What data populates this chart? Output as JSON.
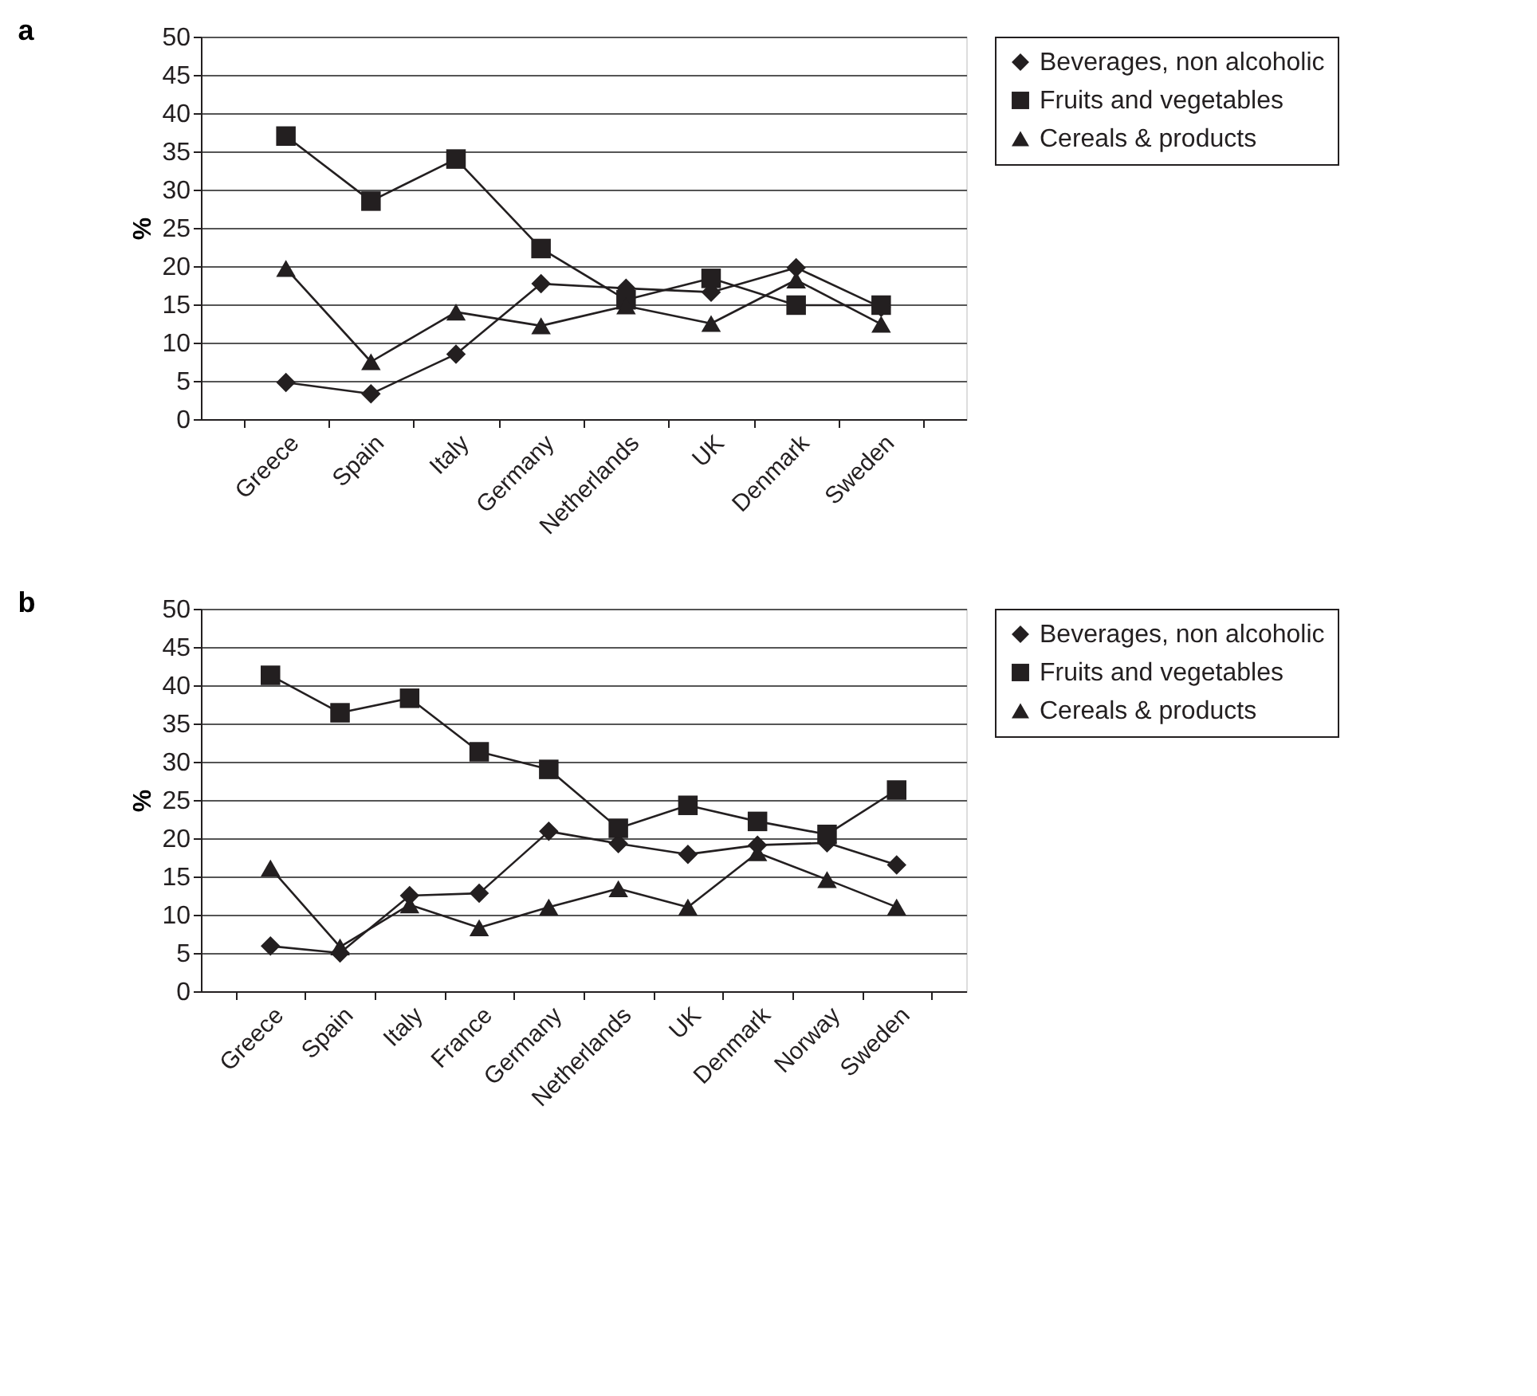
{
  "chart_data": [
    {
      "type": "line",
      "title": "a",
      "ylabel": "%",
      "categories": [
        "Greece",
        "Spain",
        "Italy",
        "Germany",
        "Netherlands",
        "UK",
        "Denmark",
        "Sweden"
      ],
      "series": [
        {
          "name": "Beverages, non alcoholic",
          "color": "#231f20",
          "marker": "diamond",
          "values": [
            4.8,
            3.3,
            8.5,
            17.7,
            17.1,
            16.6,
            19.8,
            14.6
          ]
        },
        {
          "name": "Fruits and vegetables",
          "color": "#231f20",
          "marker": "square",
          "values": [
            37,
            28.5,
            34,
            22.3,
            15.6,
            18.4,
            14.9,
            14.9
          ]
        },
        {
          "name": "Cereals & products",
          "color": "#231f20",
          "marker": "triangle",
          "values": [
            19.7,
            7.5,
            14,
            12.2,
            14.8,
            12.5,
            18.2,
            12.4
          ]
        }
      ],
      "ylim": [
        0,
        50
      ],
      "yticks": [
        0,
        5,
        10,
        15,
        20,
        25,
        30,
        35,
        40,
        45,
        50
      ],
      "grid": "y",
      "legend": "right",
      "line_style": "solid"
    },
    {
      "type": "line",
      "title": "b",
      "ylabel": "%",
      "categories": [
        "Greece",
        "Spain",
        "Italy",
        "France",
        "Germany",
        "Netherlands",
        "UK",
        "Denmark",
        "Norway",
        "Sweden"
      ],
      "series": [
        {
          "name": "Beverages, non alcoholic",
          "color": "#231f20",
          "marker": "diamond",
          "values": [
            5.9,
            5.0,
            12.5,
            12.8,
            20.9,
            19.3,
            17.9,
            19.1,
            19.4,
            16.5
          ]
        },
        {
          "name": "Fruits and vegetables",
          "color": "#231f20",
          "marker": "square",
          "values": [
            41.3,
            36.4,
            38.3,
            31.3,
            29.0,
            21.3,
            24.3,
            22.2,
            20.5,
            26.3
          ]
        },
        {
          "name": "Cereals & products",
          "color": "#231f20",
          "marker": "triangle",
          "values": [
            16.1,
            5.8,
            11.3,
            8.3,
            11.0,
            13.4,
            11.0,
            18.1,
            14.6,
            11.0
          ]
        }
      ],
      "ylim": [
        0,
        50
      ],
      "yticks": [
        0,
        5,
        10,
        15,
        20,
        25,
        30,
        35,
        40,
        45,
        50
      ],
      "grid": "y",
      "legend": "right",
      "line_style": "solid"
    }
  ]
}
